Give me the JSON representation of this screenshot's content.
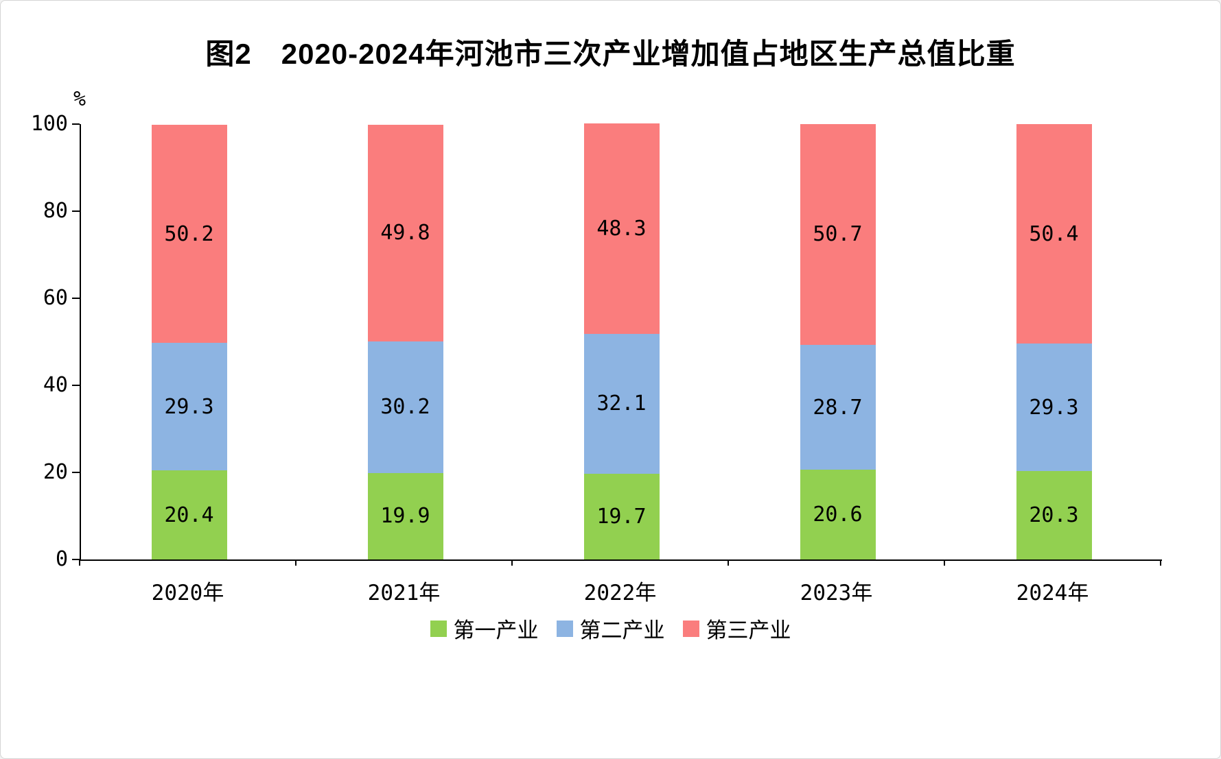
{
  "chart_data": {
    "type": "bar",
    "stacked": true,
    "title": "图2　2020-2024年河池市三次产业增加值占地区生产总值比重",
    "ylabel": "%",
    "ylim": [
      0,
      100
    ],
    "yticks": [
      0,
      20,
      40,
      60,
      80,
      100
    ],
    "grid": false,
    "legend_position": "bottom",
    "categories": [
      "2020年",
      "2021年",
      "2022年",
      "2023年",
      "2024年"
    ],
    "series": [
      {
        "name": "第一产业",
        "color": "#92D050",
        "values": [
          20.4,
          19.9,
          19.7,
          20.6,
          20.3
        ]
      },
      {
        "name": "第二产业",
        "color": "#8DB4E2",
        "values": [
          29.3,
          30.2,
          32.1,
          28.7,
          29.3
        ]
      },
      {
        "name": "第三产业",
        "color": "#FA7D7D",
        "values": [
          50.2,
          49.8,
          48.3,
          50.7,
          50.4
        ]
      }
    ]
  }
}
